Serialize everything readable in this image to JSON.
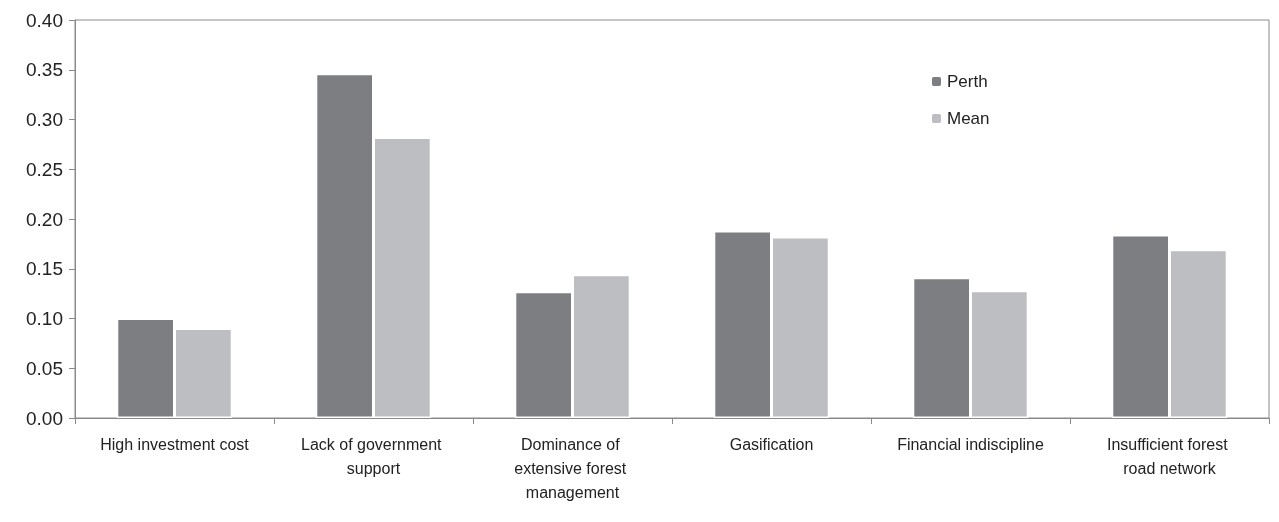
{
  "chart_data": {
    "type": "bar",
    "categories": [
      "High investment cost",
      "Lack of government support",
      "Dominance of extensive forest management",
      "Gasification",
      "Financial indiscipline",
      "Insufficient forest road network"
    ],
    "series": [
      {
        "name": "Perth",
        "color": "#7d7e82",
        "values": [
          0.1,
          0.346,
          0.127,
          0.188,
          0.141,
          0.184
        ]
      },
      {
        "name": "Mean",
        "color": "#bdbec1",
        "values": [
          0.09,
          0.282,
          0.144,
          0.182,
          0.128,
          0.169
        ]
      }
    ],
    "ylim": [
      0,
      0.4
    ],
    "yticks": [
      {
        "value": 0,
        "label": "0.00"
      },
      0.05,
      {
        "value": 0.1,
        "label": "0.10"
      },
      0.15,
      {
        "value": 0.2,
        "label": "0.20"
      },
      0.25,
      {
        "value": 0.3,
        "label": "0.30"
      },
      0.35,
      {
        "value": 0.4,
        "label": "0.40"
      }
    ],
    "grid": false,
    "legend": "top right"
  }
}
